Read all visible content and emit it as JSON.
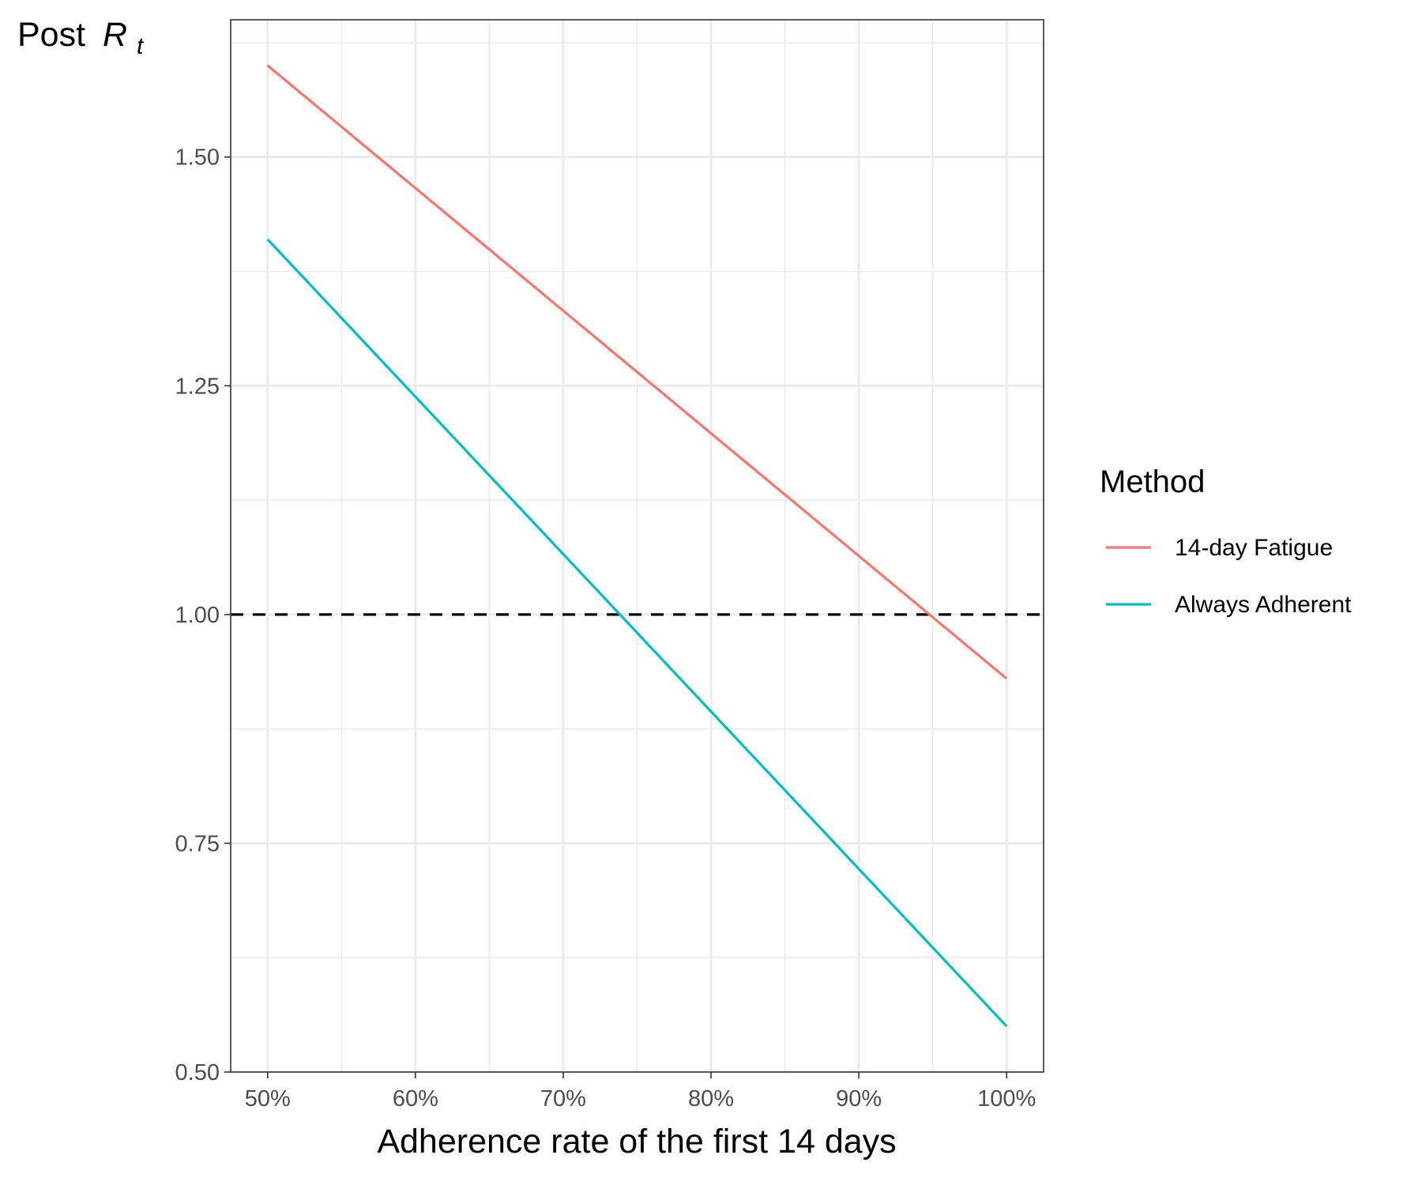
{
  "chart_data": {
    "type": "line",
    "title": "",
    "ylabel_text": "Post",
    "ylabel_symbol": "R",
    "ylabel_subscript": "t",
    "xlabel": "Adherence rate of the first 14 days",
    "x": [
      0.5,
      1.0
    ],
    "xlim": [
      0.475,
      1.025
    ],
    "ylim": [
      0.5,
      1.65
    ],
    "xticks": [
      {
        "value": 0.5,
        "label": "50%"
      },
      {
        "value": 0.6,
        "label": "60%"
      },
      {
        "value": 0.7,
        "label": "70%"
      },
      {
        "value": 0.8,
        "label": "80%"
      },
      {
        "value": 0.9,
        "label": "90%"
      },
      {
        "value": 1.0,
        "label": "100%"
      }
    ],
    "yticks": [
      {
        "value": 0.5,
        "label": "0.50"
      },
      {
        "value": 0.75,
        "label": "0.75"
      },
      {
        "value": 1.0,
        "label": "1.00"
      },
      {
        "value": 1.25,
        "label": "1.25"
      },
      {
        "value": 1.5,
        "label": "1.50"
      }
    ],
    "x_minor": [
      0.55,
      0.65,
      0.75,
      0.85,
      0.95
    ],
    "y_minor": [
      0.625,
      0.875,
      1.125,
      1.375,
      1.625
    ],
    "reference_line": {
      "y": 1.0,
      "style": "dashed",
      "color": "#000000"
    },
    "grid": true,
    "legend": {
      "title": "Method",
      "position": "right"
    },
    "series": [
      {
        "name": "14-day Fatigue",
        "color": "#F8766D",
        "x": [
          0.5,
          1.0
        ],
        "values": [
          1.6,
          0.93
        ]
      },
      {
        "name": "Always Adherent",
        "color": "#00BFC4",
        "x": [
          0.5,
          1.0
        ],
        "values": [
          1.41,
          0.55
        ]
      }
    ]
  }
}
